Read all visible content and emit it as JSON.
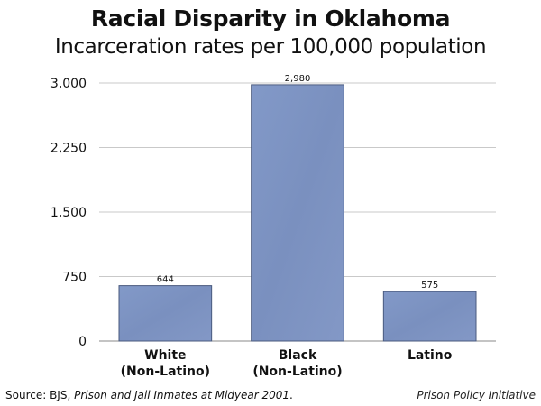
{
  "chart_data": {
    "type": "bar",
    "title": "Racial Disparity in Oklahoma",
    "subtitle": "Incarceration rates per 100,000 population",
    "categories": [
      [
        "White",
        "(Non-Latino)"
      ],
      [
        "Black",
        "(Non-Latino)"
      ],
      [
        "Latino"
      ]
    ],
    "values": [
      644,
      2980,
      575
    ],
    "value_labels": [
      "644",
      "2,980",
      "575"
    ],
    "y_ticks": [
      0,
      750,
      1500,
      2250,
      3000
    ],
    "y_tick_labels": [
      "0",
      "750",
      "1,500",
      "2,250",
      "3,000"
    ],
    "ylim": [
      0,
      3000
    ],
    "grid": true,
    "bar_color": "#7d93c2",
    "bar_edge_color": "#4a5a7e"
  },
  "footer": {
    "source_prefix": "Source: BJS, ",
    "source_title": "Prison and Jail Inmates at Midyear 2001",
    "source_suffix": ".",
    "credit": "Prison Policy Initiative"
  }
}
